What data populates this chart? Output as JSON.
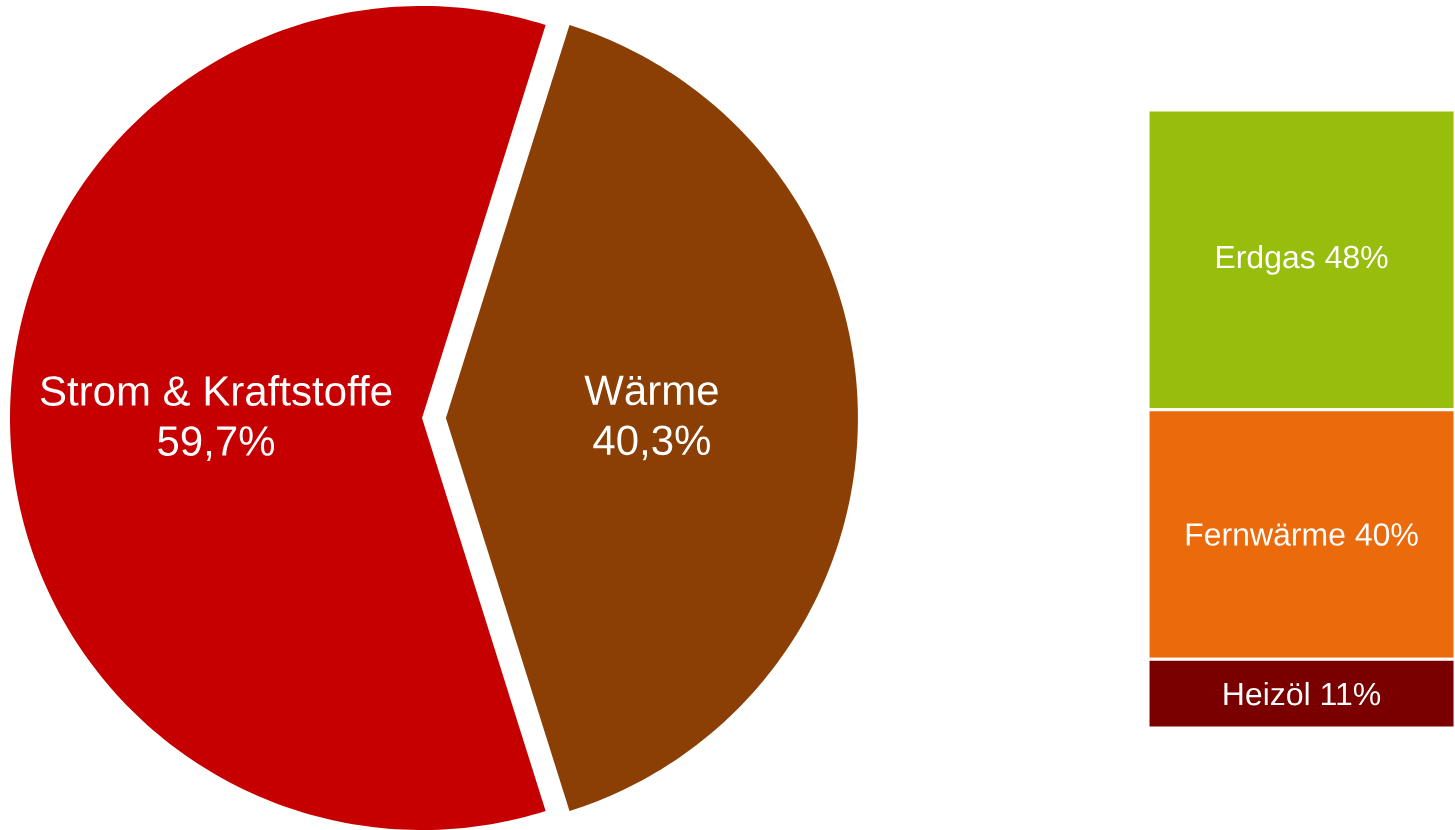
{
  "chart_data": [
    {
      "type": "pie",
      "categories": [
        "Strom & Kraftstoffe",
        "Wärme"
      ],
      "values": [
        59.7,
        40.3
      ],
      "colors": [
        "#c60000",
        "#8b3f05"
      ],
      "value_labels": [
        "59,7%",
        "40,3%"
      ]
    },
    {
      "type": "bar",
      "stacked": true,
      "categories": [
        null
      ],
      "series": [
        {
          "color": "#7a0000",
          "values": [
            11
          ],
          "value_labels": [
            "Heizöl 11%"
          ]
        },
        {
          "color": "#ea6a0c",
          "values": [
            40
          ],
          "value_labels": [
            "Fernwärme 40%"
          ]
        },
        {
          "color": "#97bd0d",
          "values": [
            48
          ],
          "value_labels": [
            "Erdgas 48%"
          ]
        }
      ]
    }
  ]
}
